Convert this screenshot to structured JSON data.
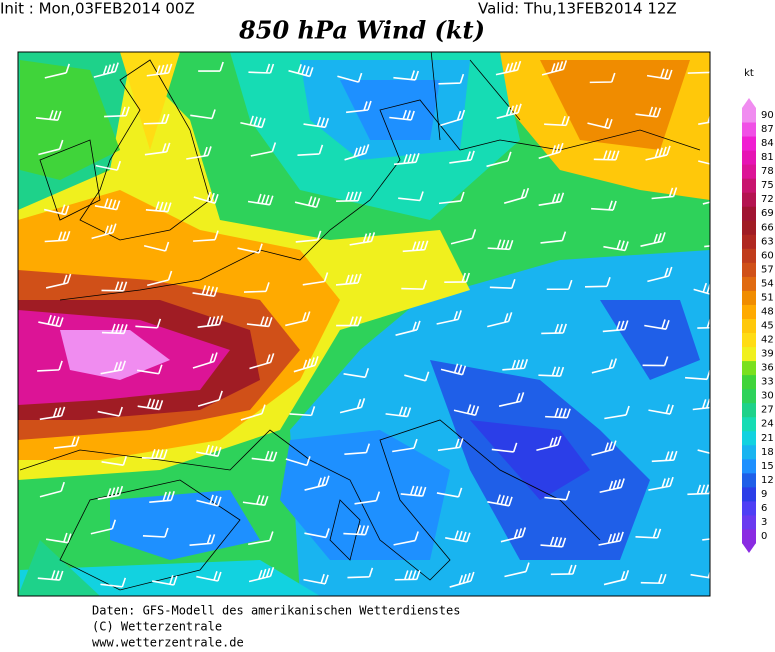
{
  "header": {
    "init": "Init : Mon,03FEB2014 00Z",
    "valid": "Valid: Thu,13FEB2014 12Z",
    "title": "850 hPa Wind (kt)"
  },
  "legend": {
    "unit": "kt",
    "ticks": [
      0,
      3,
      6,
      9,
      12,
      15,
      18,
      21,
      24,
      27,
      30,
      33,
      36,
      39,
      42,
      45,
      48,
      51,
      54,
      57,
      60,
      63,
      66,
      69,
      72,
      75,
      78,
      81,
      84,
      87,
      90
    ],
    "colors": [
      "#8a2be2",
      "#6a3af0",
      "#4f3ff5",
      "#2b3ee8",
      "#1f5fe8",
      "#1e90ff",
      "#19b4f0",
      "#12d2e0",
      "#16dcb4",
      "#1ed28a",
      "#2ed25a",
      "#40d43a",
      "#7ae01e",
      "#f0f01e",
      "#ffdc14",
      "#ffc80a",
      "#ffaa00",
      "#f08c00",
      "#e06a10",
      "#d05018",
      "#c03c1c",
      "#b02820",
      "#a01c24",
      "#a01432",
      "#b41450",
      "#c8146e",
      "#dc1496",
      "#e614b4",
      "#f01ed2",
      "#f050e6",
      "#f08cf0"
    ]
  },
  "footer": {
    "lines": [
      "Daten: GFS-Modell des amerikanischen Wetterdienstes",
      "(C) Wetterzentrale",
      "www.wetterzentrale.de"
    ]
  }
}
